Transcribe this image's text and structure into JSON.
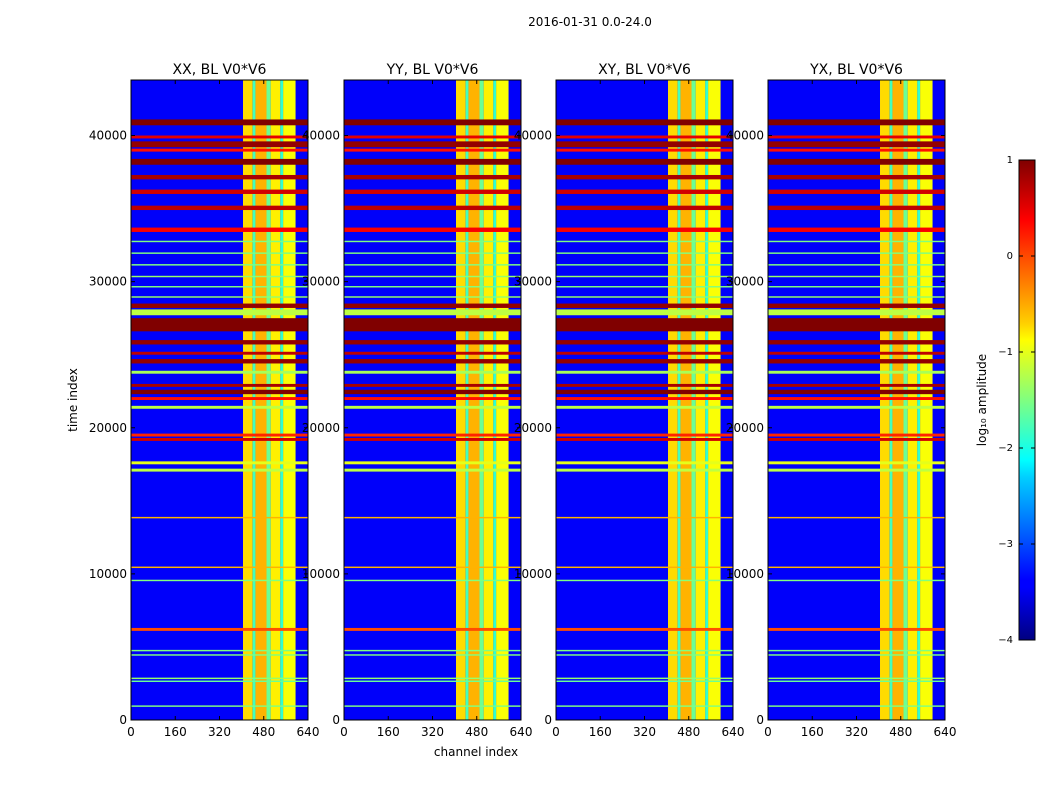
{
  "chart_data": {
    "type": "heatmap",
    "suptitle": "2016-01-31 0.0-24.0",
    "xlabel": "channel index",
    "ylabel": "time index",
    "xlim": [
      0,
      640
    ],
    "ylim": [
      0,
      43800
    ],
    "xticks": [
      0,
      160,
      320,
      480,
      640
    ],
    "yticks": [
      0,
      10000,
      20000,
      30000,
      40000
    ],
    "panels": [
      {
        "title": "XX, BL V0*V6",
        "pol": "XX"
      },
      {
        "title": "YY, BL V0*V6",
        "pol": "YY"
      },
      {
        "title": "XY, BL V0*V6",
        "pol": "XY"
      },
      {
        "title": "YX, BL V0*V6",
        "pol": "YX"
      }
    ],
    "background_log10_amplitude": -3.4,
    "band_columns": [
      {
        "x0": 405,
        "x1": 440,
        "value": -0.7
      },
      {
        "x0": 440,
        "x1": 450,
        "value": -1.8
      },
      {
        "x0": 450,
        "x1": 490,
        "value": -0.5
      },
      {
        "x0": 490,
        "x1": 505,
        "value": -1.6
      },
      {
        "x0": 505,
        "x1": 540,
        "value": -0.8
      },
      {
        "x0": 540,
        "x1": 550,
        "value": -1.9
      },
      {
        "x0": 550,
        "x1": 595,
        "value": -0.9
      }
    ],
    "rfi_time_bands": [
      {
        "t0": 40700,
        "t1": 41100,
        "value": 1.0
      },
      {
        "t0": 39800,
        "t1": 40000,
        "value": 0.5
      },
      {
        "t0": 39200,
        "t1": 39600,
        "value": 0.9
      },
      {
        "t0": 38900,
        "t1": 39100,
        "value": 0.3
      },
      {
        "t0": 38000,
        "t1": 38400,
        "value": 1.0
      },
      {
        "t0": 37000,
        "t1": 37300,
        "value": 0.8
      },
      {
        "t0": 36000,
        "t1": 36300,
        "value": 0.6
      },
      {
        "t0": 34900,
        "t1": 35200,
        "value": 0.7
      },
      {
        "t0": 33400,
        "t1": 33700,
        "value": 0.4
      },
      {
        "t0": 32700,
        "t1": 32800,
        "value": -1.5
      },
      {
        "t0": 31900,
        "t1": 32000,
        "value": -1.5
      },
      {
        "t0": 31100,
        "t1": 31200,
        "value": -1.5
      },
      {
        "t0": 30300,
        "t1": 30400,
        "value": -1.4
      },
      {
        "t0": 29600,
        "t1": 29700,
        "value": -1.5
      },
      {
        "t0": 28900,
        "t1": 29000,
        "value": -1.4
      },
      {
        "t0": 28200,
        "t1": 28500,
        "value": 0.9
      },
      {
        "t0": 27700,
        "t1": 28100,
        "value": -1.2
      },
      {
        "t0": 26600,
        "t1": 27500,
        "value": 1.0
      },
      {
        "t0": 25700,
        "t1": 26000,
        "value": 0.9
      },
      {
        "t0": 25000,
        "t1": 25200,
        "value": 0.7
      },
      {
        "t0": 24400,
        "t1": 24700,
        "value": 0.9
      },
      {
        "t0": 23700,
        "t1": 23900,
        "value": -1.3
      },
      {
        "t0": 22800,
        "t1": 23000,
        "value": 0.8
      },
      {
        "t0": 22300,
        "t1": 22600,
        "value": 1.0
      },
      {
        "t0": 21900,
        "t1": 22100,
        "value": 0.3
      },
      {
        "t0": 21300,
        "t1": 21500,
        "value": -1.2
      },
      {
        "t0": 19400,
        "t1": 19600,
        "value": 0.2
      },
      {
        "t0": 19100,
        "t1": 19300,
        "value": 0.6
      },
      {
        "t0": 17500,
        "t1": 17700,
        "value": -1.0
      },
      {
        "t0": 17000,
        "t1": 17200,
        "value": -1.2
      },
      {
        "t0": 13800,
        "t1": 13900,
        "value": -0.5
      },
      {
        "t0": 10400,
        "t1": 10500,
        "value": -0.5
      },
      {
        "t0": 9500,
        "t1": 9600,
        "value": -1.5
      },
      {
        "t0": 6100,
        "t1": 6300,
        "value": 0.0
      },
      {
        "t0": 4700,
        "t1": 4800,
        "value": -1.5
      },
      {
        "t0": 4400,
        "t1": 4500,
        "value": -1.5
      },
      {
        "t0": 2800,
        "t1": 2900,
        "value": -1.4
      },
      {
        "t0": 2600,
        "t1": 2700,
        "value": -1.6
      },
      {
        "t0": 900,
        "t1": 1000,
        "value": -1.5
      }
    ],
    "colorbar": {
      "label": "log₁₀ amplitude",
      "vmin": -4,
      "vmax": 1,
      "ticks": [
        1,
        0,
        -1,
        -2,
        -3,
        -4
      ],
      "tick_labels": [
        "1",
        "0",
        "−1",
        "−2",
        "−3",
        "−4"
      ]
    }
  }
}
